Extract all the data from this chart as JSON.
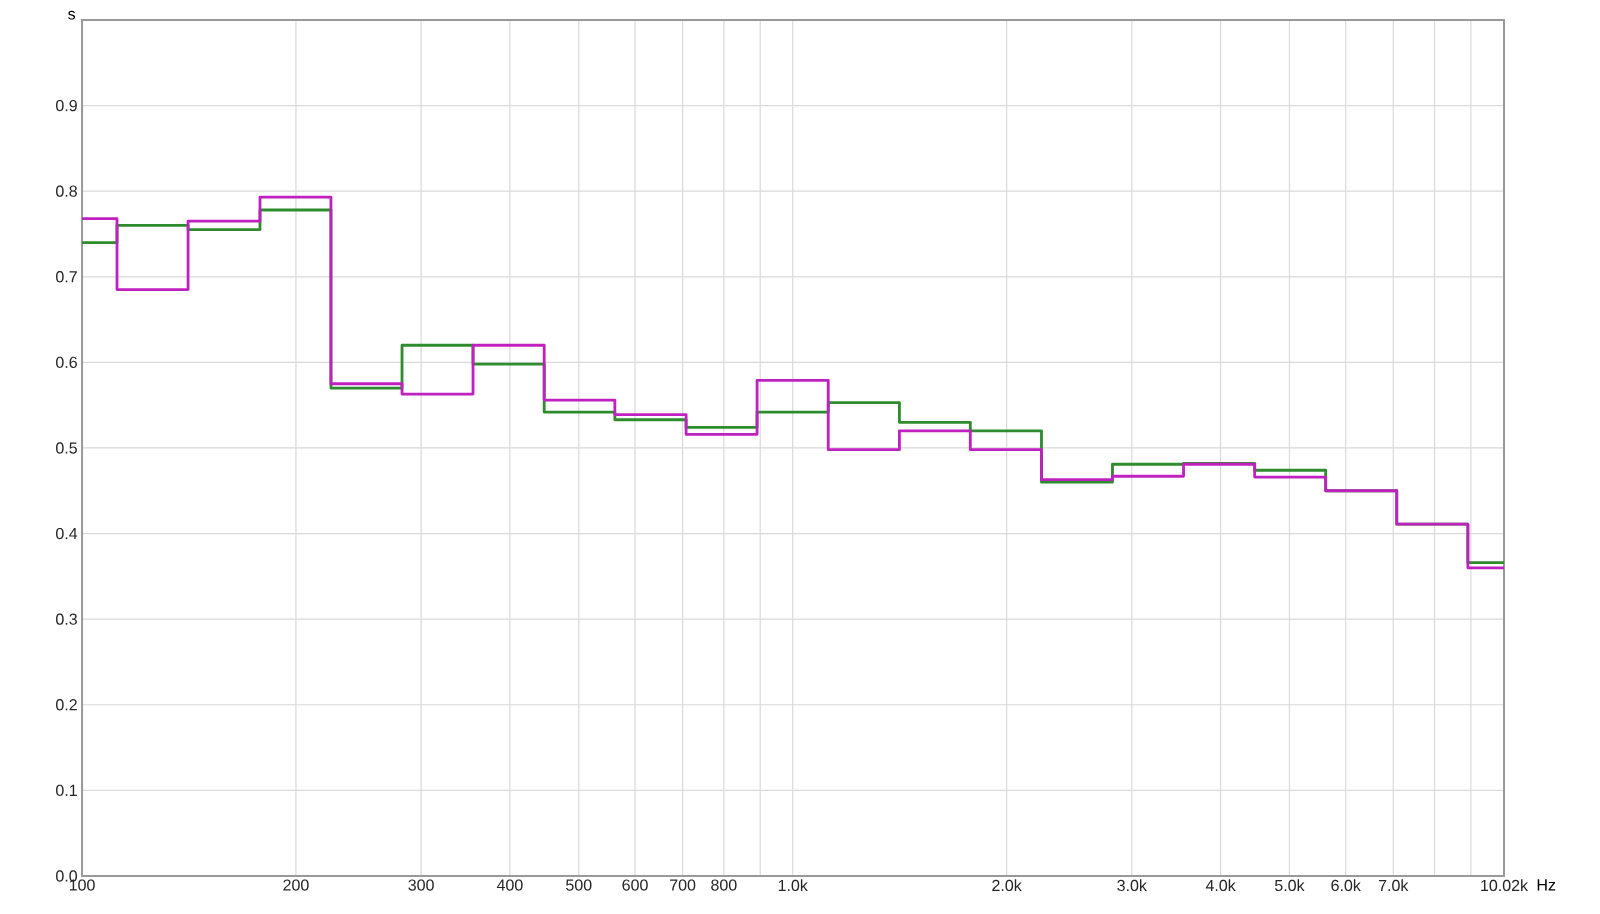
{
  "chart_data": {
    "type": "histogram",
    "xlabel": "Hz",
    "ylabel": "s",
    "log": "x",
    "bins": [
      100,
      112,
      141,
      178,
      224,
      282,
      355,
      447,
      562,
      708,
      891,
      1122,
      1413,
      1778,
      2239,
      2818,
      3548,
      4467,
      5623,
      7079,
      8913,
      10020
    ],
    "series": [
      {
        "color": "#2e8b2e",
        "values": [
          0.74,
          0.76,
          0.755,
          0.778,
          0.57,
          0.62,
          0.598,
          0.542,
          0.533,
          0.524,
          0.542,
          0.553,
          0.53,
          0.52,
          0.46,
          0.481,
          0.482,
          0.474,
          0.45,
          0.411,
          0.366
        ]
      },
      {
        "color": "#c020c0",
        "values": [
          0.768,
          0.685,
          0.765,
          0.793,
          0.575,
          0.563,
          0.62,
          0.556,
          0.539,
          0.516,
          0.579,
          0.498,
          0.52,
          0.498,
          0.463,
          0.467,
          0.481,
          0.466,
          0.45,
          0.411,
          0.36
        ]
      }
    ],
    "xlim": [
      100,
      10020
    ],
    "xticks": [
      100,
      200,
      300,
      400,
      500,
      600,
      700,
      800,
      {
        "value": 900,
        "label": null
      },
      {
        "value": 1000,
        "label": "1.0k"
      },
      {
        "value": 2000,
        "label": "2.0k"
      },
      {
        "value": 3000,
        "label": "3.0k"
      },
      {
        "value": 4000,
        "label": "4.0k"
      },
      {
        "value": 5000,
        "label": "5.0k"
      },
      {
        "value": 6000,
        "label": "6.0k"
      },
      {
        "value": 7000,
        "label": "7.0k"
      },
      {
        "value": 8000,
        "label": null
      },
      {
        "value": 9000,
        "label": null
      },
      {
        "value": 10020,
        "label": "10.02k"
      }
    ],
    "ylim": [
      0,
      1.0
    ],
    "yticks": [
      {
        "value": 0,
        "label": "0.0"
      },
      0.1,
      0.2,
      0.3,
      0.4,
      0.5,
      0.6,
      0.7,
      0.8,
      0.9,
      {
        "value": 1.0,
        "label": null
      }
    ],
    "grid": true,
    "legend": false
  }
}
